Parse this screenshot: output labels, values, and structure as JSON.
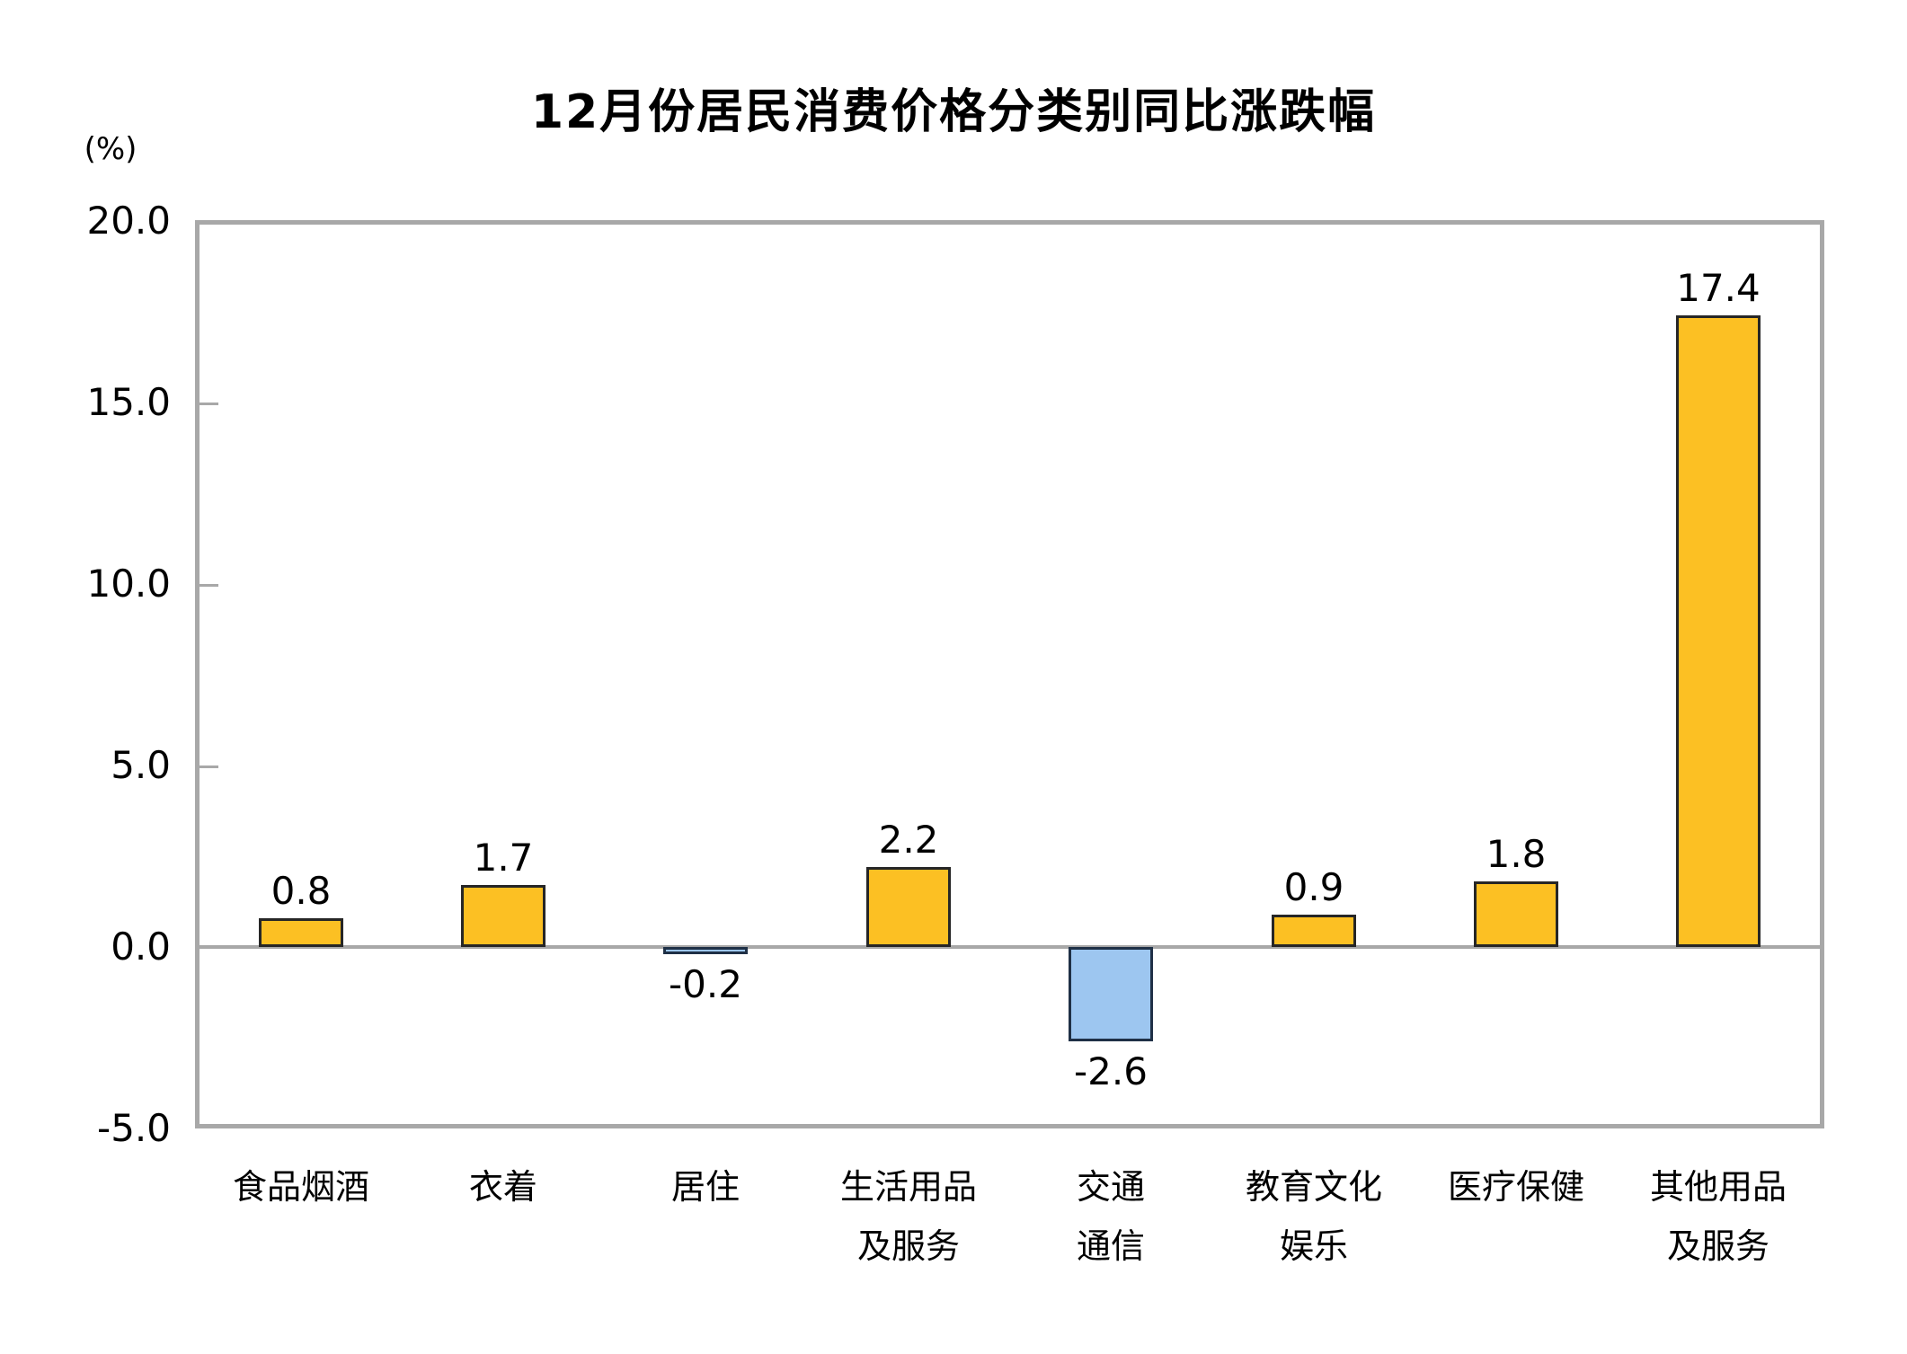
{
  "title": "12月份居民消费价格分类别同比涨跌幅",
  "y_axis": {
    "unit_label": "(%)",
    "ticks": [
      "20.0",
      "15.0",
      "10.0",
      "5.0",
      "0.0",
      "-5.0"
    ]
  },
  "chart_data": {
    "type": "bar",
    "title": "12月份居民消费价格分类别同比涨跌幅",
    "xlabel": "",
    "ylabel": "(%)",
    "ylim": [
      -5.0,
      20.0
    ],
    "ytick_step": 5.0,
    "grid": "zero-line-only",
    "legend": "none",
    "categories": [
      "食品烟酒",
      "衣着",
      "居住",
      "生活用品及服务",
      "交通通信",
      "教育文化娱乐",
      "医疗保健",
      "其他用品及服务"
    ],
    "category_lines": [
      [
        "食品烟酒"
      ],
      [
        "衣着"
      ],
      [
        "居住"
      ],
      [
        "生活用品",
        "及服务"
      ],
      [
        "交通",
        "通信"
      ],
      [
        "教育文化",
        "娱乐"
      ],
      [
        "医疗保健"
      ],
      [
        "其他用品",
        "及服务"
      ]
    ],
    "values": [
      0.8,
      1.7,
      -0.2,
      2.2,
      -2.6,
      0.9,
      1.8,
      17.4
    ],
    "value_labels": [
      "0.8",
      "1.7",
      "-0.2",
      "2.2",
      "-2.6",
      "0.9",
      "1.8",
      "17.4"
    ],
    "colors": {
      "positive_fill": "#fcc023",
      "positive_border": "#262626",
      "negative_fill": "#9dc6f0",
      "negative_border": "#1f3046",
      "axis": "#a8a8a8",
      "text": "#000000"
    }
  }
}
